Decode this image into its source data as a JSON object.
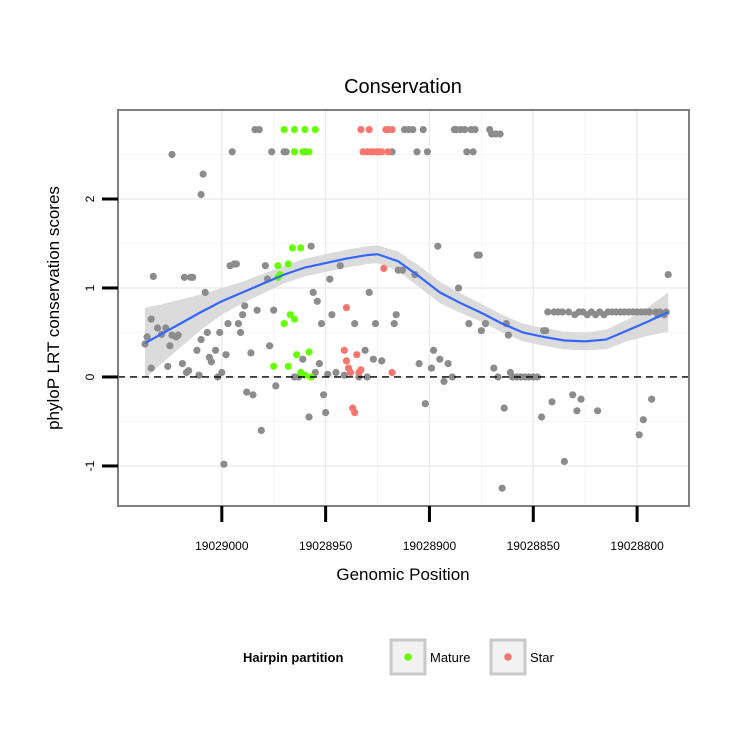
{
  "chart_data": {
    "type": "scatter",
    "title": "Conservation",
    "xlabel": "Genomic Position",
    "ylabel": "phyloP LRT conservation scores",
    "x_reversed": true,
    "xlim": [
      19029050,
      19028775
    ],
    "ylim": [
      -1.45,
      3.0
    ],
    "x_ticks": [
      19029000,
      19028950,
      19028900,
      19028850,
      19028800
    ],
    "x_tick_labels": [
      "19029000",
      "19028950",
      "19028900",
      "19028850",
      "19028800"
    ],
    "y_ticks": [
      -1,
      0,
      1,
      2
    ],
    "y_tick_labels": [
      "-1",
      "0",
      "1",
      "2"
    ],
    "reference_line": {
      "y": 0,
      "style": "dashed"
    },
    "legend": {
      "title": "Hairpin partition",
      "position": "bottom",
      "entries": [
        {
          "label": "Mature",
          "color": "#66ff00"
        },
        {
          "label": "Star",
          "color": "#f8766d"
        }
      ]
    },
    "colors": {
      "other": "#8c8c8c",
      "mature": "#66ff00",
      "star": "#f8766d",
      "smooth": "#3366ff",
      "band": "#d9d9d9"
    },
    "series": [
      {
        "name": "Other",
        "points": [
          [
            19029037,
            0.37
          ],
          [
            19029036,
            0.45
          ],
          [
            19029034,
            0.65
          ],
          [
            19029033,
            1.13
          ],
          [
            19029034,
            0.1
          ],
          [
            19029031,
            0.55
          ],
          [
            19029029,
            0.48
          ],
          [
            19029027,
            0.55
          ],
          [
            19029026,
            0.12
          ],
          [
            19029025,
            0.35
          ],
          [
            19029024,
            0.47
          ],
          [
            19029022,
            0.45
          ],
          [
            19029021,
            0.47
          ],
          [
            19029024,
            2.5
          ],
          [
            19029019,
            0.15
          ],
          [
            19029018,
            1.12
          ],
          [
            19029017,
            0.05
          ],
          [
            19029016,
            0.07
          ],
          [
            19029015,
            1.12
          ],
          [
            19029014,
            1.12
          ],
          [
            19029012,
            0.3
          ],
          [
            19029011,
            0.02
          ],
          [
            19029010,
            0.42
          ],
          [
            19029010,
            2.05
          ],
          [
            19029009,
            2.28
          ],
          [
            19029008,
            0.95
          ],
          [
            19029007,
            0.5
          ],
          [
            19029006,
            0.22
          ],
          [
            19029005,
            0.17
          ],
          [
            19029003,
            0.3
          ],
          [
            19029002,
            0.0
          ],
          [
            19029001,
            0.5
          ],
          [
            19029000,
            0.05
          ],
          [
            19028999,
            -0.98
          ],
          [
            19028998,
            0.25
          ],
          [
            19028997,
            0.6
          ],
          [
            19028996,
            1.25
          ],
          [
            19028995,
            2.53
          ],
          [
            19028994,
            1.27
          ],
          [
            19028993,
            1.27
          ],
          [
            19028992,
            0.6
          ],
          [
            19028991,
            0.5
          ],
          [
            19028990,
            0.7
          ],
          [
            19028989,
            0.8
          ],
          [
            19028988,
            -0.17
          ],
          [
            19028986,
            0.27
          ],
          [
            19028985,
            -0.2
          ],
          [
            19028984,
            2.78
          ],
          [
            19028983,
            0.75
          ],
          [
            19028982,
            2.78
          ],
          [
            19028981,
            -0.6
          ],
          [
            19028979,
            1.25
          ],
          [
            19028978,
            1.1
          ],
          [
            19028977,
            0.35
          ],
          [
            19028976,
            2.53
          ],
          [
            19028975,
            0.75
          ],
          [
            19028974,
            -0.1
          ],
          [
            19028970,
            2.53
          ],
          [
            19028969,
            2.53
          ],
          [
            19028965,
            0.0
          ],
          [
            19028963,
            0.0
          ],
          [
            19028961,
            0.2
          ],
          [
            19028960,
            2.53
          ],
          [
            19028958,
            -0.45
          ],
          [
            19028957,
            1.47
          ],
          [
            19028956,
            0.95
          ],
          [
            19028955,
            0.05
          ],
          [
            19028954,
            0.85
          ],
          [
            19028953,
            0.15
          ],
          [
            19028952,
            0.6
          ],
          [
            19028951,
            -0.2
          ],
          [
            19028950,
            -0.4
          ],
          [
            19028949,
            0.03
          ],
          [
            19028948,
            1.1
          ],
          [
            19028947,
            0.7
          ],
          [
            19028945,
            0.05
          ],
          [
            19028943,
            1.25
          ],
          [
            19028941,
            0.02
          ],
          [
            19028936,
            0.6
          ],
          [
            19028934,
            0.0
          ],
          [
            19028931,
            0.3
          ],
          [
            19028930,
            0.0
          ],
          [
            19028929,
            0.95
          ],
          [
            19028927,
            0.2
          ],
          [
            19028926,
            0.6
          ],
          [
            19028925,
            2.53
          ],
          [
            19028923,
            0.18
          ],
          [
            19028920,
            2.78
          ],
          [
            19028918,
            2.53
          ],
          [
            19028917,
            0.6
          ],
          [
            19028916,
            0.7
          ],
          [
            19028915,
            1.2
          ],
          [
            19028913,
            1.2
          ],
          [
            19028912,
            2.78
          ],
          [
            19028910,
            2.78
          ],
          [
            19028908,
            2.78
          ],
          [
            19028907,
            1.15
          ],
          [
            19028906,
            2.53
          ],
          [
            19028905,
            0.15
          ],
          [
            19028903,
            2.78
          ],
          [
            19028902,
            -0.3
          ],
          [
            19028901,
            2.53
          ],
          [
            19028899,
            0.1
          ],
          [
            19028898,
            0.3
          ],
          [
            19028896,
            1.47
          ],
          [
            19028895,
            0.2
          ],
          [
            19028893,
            -0.05
          ],
          [
            19028891,
            0.15
          ],
          [
            19028889,
            0.0
          ],
          [
            19028888,
            2.78
          ],
          [
            19028887,
            2.78
          ],
          [
            19028886,
            1.0
          ],
          [
            19028885,
            2.78
          ],
          [
            19028883,
            2.78
          ],
          [
            19028882,
            2.53
          ],
          [
            19028881,
            0.6
          ],
          [
            19028880,
            2.78
          ],
          [
            19028879,
            2.53
          ],
          [
            19028878,
            2.78
          ],
          [
            19028877,
            1.37
          ],
          [
            19028876,
            1.37
          ],
          [
            19028875,
            0.52
          ],
          [
            19028873,
            0.6
          ],
          [
            19028871,
            2.78
          ],
          [
            19028870,
            2.73
          ],
          [
            19028869,
            0.1
          ],
          [
            19028868,
            2.73
          ],
          [
            19028867,
            0.0
          ],
          [
            19028866,
            2.73
          ],
          [
            19028865,
            -1.25
          ],
          [
            19028864,
            -0.35
          ],
          [
            19028863,
            0.6
          ],
          [
            19028862,
            0.47
          ],
          [
            19028861,
            0.05
          ],
          [
            19028860,
            0.0
          ],
          [
            19028858,
            0.0
          ],
          [
            19028856,
            0.0
          ],
          [
            19028854,
            0.0
          ],
          [
            19028852,
            0.0
          ],
          [
            19028850,
            0.0
          ],
          [
            19028848,
            0.0
          ],
          [
            19028846,
            -0.45
          ],
          [
            19028845,
            0.52
          ],
          [
            19028844,
            0.52
          ],
          [
            19028843,
            0.73
          ],
          [
            19028841,
            -0.28
          ],
          [
            19028840,
            0.73
          ],
          [
            19028838,
            0.73
          ],
          [
            19028836,
            0.73
          ],
          [
            19028835,
            -0.95
          ],
          [
            19028833,
            0.73
          ],
          [
            19028831,
            -0.2
          ],
          [
            19028830,
            0.7
          ],
          [
            19028829,
            -0.38
          ],
          [
            19028828,
            0.73
          ],
          [
            19028827,
            -0.25
          ],
          [
            19028826,
            0.73
          ],
          [
            19028824,
            0.7
          ],
          [
            19028822,
            0.73
          ],
          [
            19028820,
            0.7
          ],
          [
            19028819,
            -0.38
          ],
          [
            19028818,
            0.73
          ],
          [
            19028816,
            0.7
          ],
          [
            19028814,
            0.73
          ],
          [
            19028812,
            0.73
          ],
          [
            19028810,
            0.73
          ],
          [
            19028808,
            0.73
          ],
          [
            19028806,
            0.73
          ],
          [
            19028804,
            0.73
          ],
          [
            19028802,
            0.73
          ],
          [
            19028800,
            0.73
          ],
          [
            19028799,
            -0.65
          ],
          [
            19028798,
            0.73
          ],
          [
            19028797,
            -0.48
          ],
          [
            19028796,
            0.73
          ],
          [
            19028794,
            0.73
          ],
          [
            19028793,
            -0.25
          ],
          [
            19028791,
            0.73
          ],
          [
            19028790,
            0.7
          ],
          [
            19028789,
            0.73
          ],
          [
            19028787,
            0.7
          ],
          [
            19028786,
            0.73
          ],
          [
            19028785,
            1.15
          ]
        ]
      },
      {
        "name": "Mature",
        "points": [
          [
            19028975,
            0.12
          ],
          [
            19028973,
            1.12
          ],
          [
            19028973,
            1.25
          ],
          [
            19028972,
            1.15
          ],
          [
            19028970,
            0.6
          ],
          [
            19028970,
            2.78
          ],
          [
            19028968,
            1.27
          ],
          [
            19028968,
            0.12
          ],
          [
            19028967,
            0.7
          ],
          [
            19028966,
            1.45
          ],
          [
            19028965,
            0.65
          ],
          [
            19028965,
            2.53
          ],
          [
            19028965,
            2.78
          ],
          [
            19028964,
            0.25
          ],
          [
            19028962,
            1.45
          ],
          [
            19028962,
            0.05
          ],
          [
            19028961,
            2.53
          ],
          [
            19028960,
            2.78
          ],
          [
            19028960,
            0.02
          ],
          [
            19028958,
            0.28
          ],
          [
            19028957,
            0.0
          ],
          [
            19028955,
            2.78
          ],
          [
            19028958,
            2.53
          ]
        ]
      },
      {
        "name": "Star",
        "points": [
          [
            19028941,
            0.3
          ],
          [
            19028940,
            0.18
          ],
          [
            19028940,
            0.78
          ],
          [
            19028939,
            0.1
          ],
          [
            19028938,
            0.05
          ],
          [
            19028937,
            -0.35
          ],
          [
            19028936,
            -0.4
          ],
          [
            19028935,
            0.25
          ],
          [
            19028934,
            0.05
          ],
          [
            19028933,
            0.08
          ],
          [
            19028933,
            2.78
          ],
          [
            19028932,
            2.53
          ],
          [
            19028930,
            2.53
          ],
          [
            19028929,
            2.78
          ],
          [
            19028928,
            2.53
          ],
          [
            19028927,
            2.53
          ],
          [
            19028925,
            2.53
          ],
          [
            19028924,
            2.53
          ],
          [
            19028923,
            2.53
          ],
          [
            19028922,
            1.22
          ],
          [
            19028921,
            2.78
          ],
          [
            19028920,
            2.53
          ],
          [
            19028918,
            0.05
          ],
          [
            19028918,
            2.78
          ]
        ]
      }
    ],
    "smooth": {
      "method": "loess",
      "fit": [
        [
          19029037,
          0.38
        ],
        [
          19029030,
          0.47
        ],
        [
          19029020,
          0.6
        ],
        [
          19029010,
          0.73
        ],
        [
          19029000,
          0.85
        ],
        [
          19028990,
          0.95
        ],
        [
          19028980,
          1.05
        ],
        [
          19028970,
          1.15
        ],
        [
          19028960,
          1.23
        ],
        [
          19028950,
          1.28
        ],
        [
          19028940,
          1.33
        ],
        [
          19028930,
          1.37
        ],
        [
          19028925,
          1.38
        ],
        [
          19028915,
          1.3
        ],
        [
          19028905,
          1.13
        ],
        [
          19028895,
          0.95
        ],
        [
          19028885,
          0.83
        ],
        [
          19028875,
          0.72
        ],
        [
          19028865,
          0.6
        ],
        [
          19028855,
          0.5
        ],
        [
          19028845,
          0.45
        ],
        [
          19028835,
          0.41
        ],
        [
          19028825,
          0.4
        ],
        [
          19028815,
          0.42
        ],
        [
          19028805,
          0.52
        ],
        [
          19028795,
          0.62
        ],
        [
          19028785,
          0.73
        ]
      ],
      "band_halfwidth": [
        0.4,
        0.34,
        0.27,
        0.2,
        0.15,
        0.12,
        0.11,
        0.1,
        0.1,
        0.1,
        0.1,
        0.1,
        0.1,
        0.11,
        0.12,
        0.12,
        0.11,
        0.1,
        0.1,
        0.1,
        0.1,
        0.1,
        0.1,
        0.11,
        0.12,
        0.16,
        0.22
      ]
    }
  }
}
